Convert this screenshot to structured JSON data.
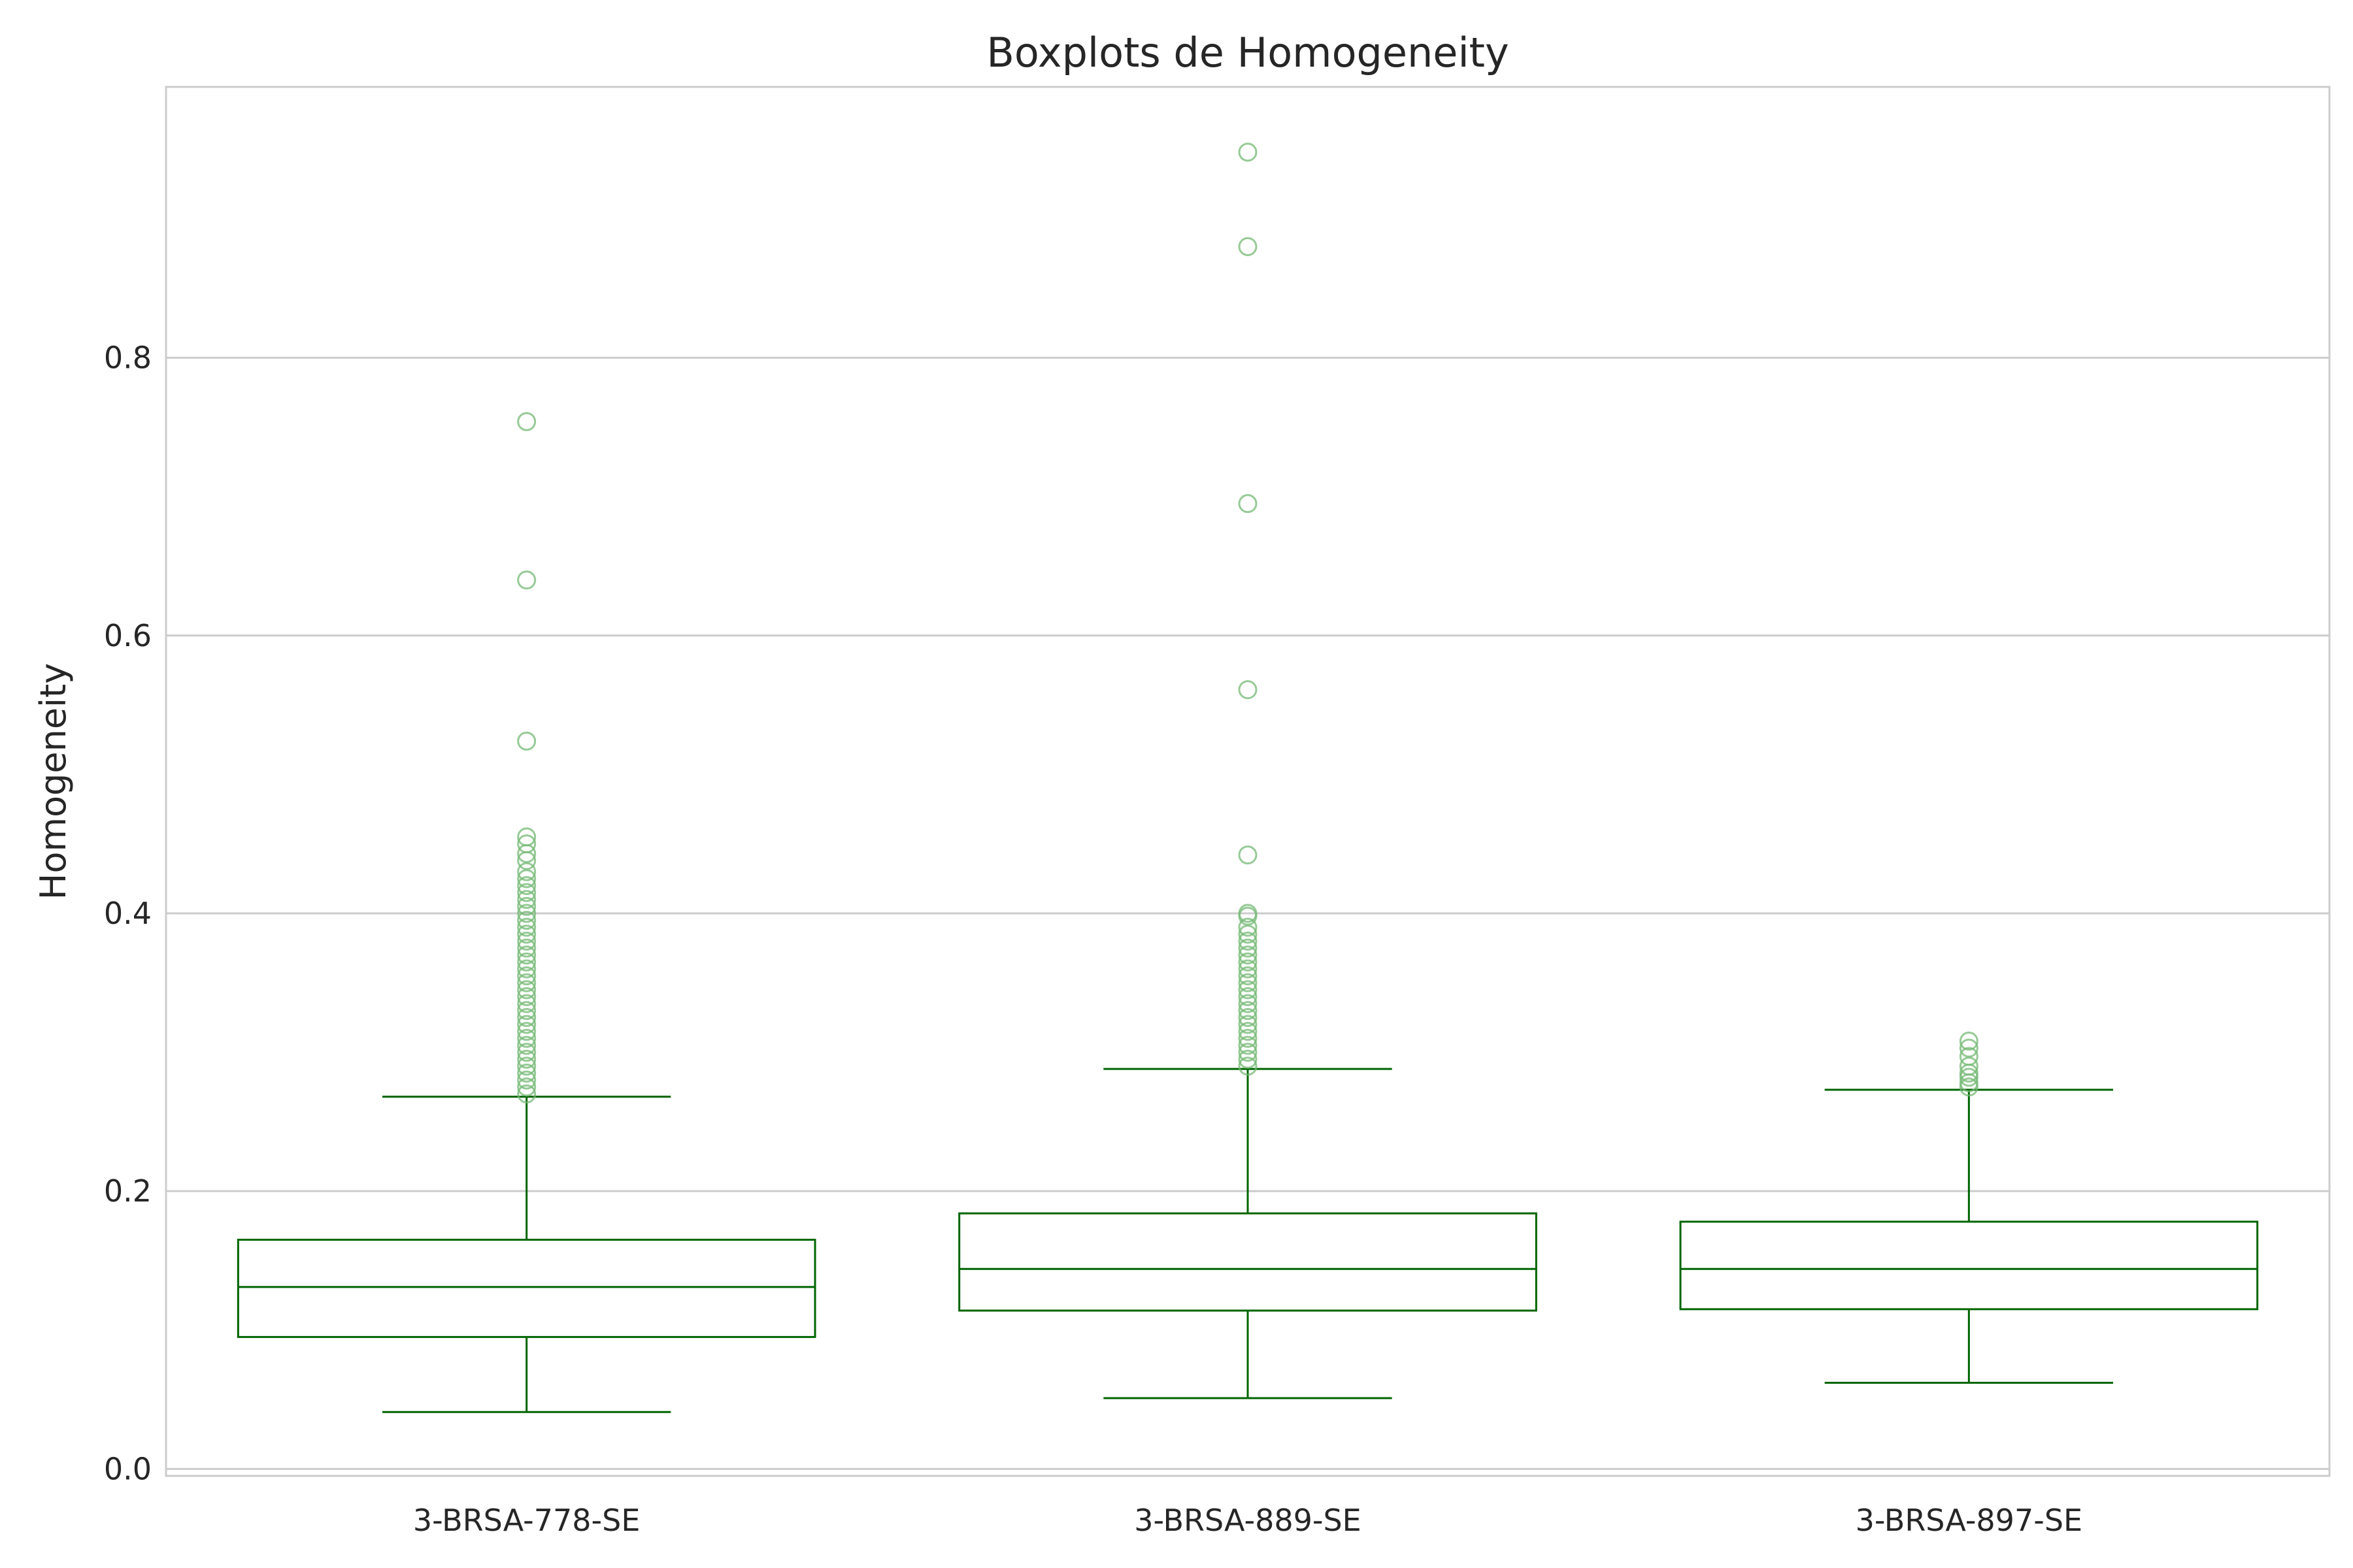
{
  "chart_data": {
    "type": "box",
    "title": "Boxplots de Homogeneity",
    "xlabel": "",
    "ylabel": "Homogeneity",
    "ylim": [
      -0.005,
      0.995
    ],
    "yticks": [
      "0.0",
      "0.2",
      "0.4",
      "0.6",
      "0.8"
    ],
    "grid": "horizontal",
    "colors": {
      "line": "#006400",
      "flier": "#74b874",
      "grid": "#cccccc",
      "spine": "#cccccc"
    },
    "categories": [
      "3-BRSA-778-SE",
      "3-BRSA-889-SE",
      "3-BRSA-897-SE"
    ],
    "boxes": [
      {
        "whisker_low": 0.041,
        "q1": 0.095,
        "median": 0.131,
        "q3": 0.165,
        "whisker_high": 0.268,
        "outliers": [
          0.754,
          0.64,
          0.524,
          0.455,
          0.45,
          0.443,
          0.438,
          0.43,
          0.425,
          0.42,
          0.415,
          0.41,
          0.405,
          0.4,
          0.395,
          0.39,
          0.385,
          0.38,
          0.375,
          0.37,
          0.365,
          0.36,
          0.355,
          0.35,
          0.345,
          0.34,
          0.335,
          0.33,
          0.325,
          0.32,
          0.315,
          0.31,
          0.305,
          0.3,
          0.295,
          0.29,
          0.285,
          0.28,
          0.275,
          0.27
        ]
      },
      {
        "whisker_low": 0.051,
        "q1": 0.114,
        "median": 0.144,
        "q3": 0.184,
        "whisker_high": 0.288,
        "outliers": [
          0.948,
          0.88,
          0.695,
          0.561,
          0.442,
          0.4,
          0.398,
          0.39,
          0.385,
          0.38,
          0.375,
          0.37,
          0.365,
          0.36,
          0.355,
          0.35,
          0.345,
          0.34,
          0.335,
          0.33,
          0.325,
          0.32,
          0.315,
          0.31,
          0.305,
          0.3,
          0.295,
          0.29
        ]
      },
      {
        "whisker_low": 0.062,
        "q1": 0.115,
        "median": 0.144,
        "q3": 0.178,
        "whisker_high": 0.273,
        "outliers": [
          0.308,
          0.303,
          0.297,
          0.29,
          0.285,
          0.282,
          0.278,
          0.275
        ]
      }
    ]
  }
}
